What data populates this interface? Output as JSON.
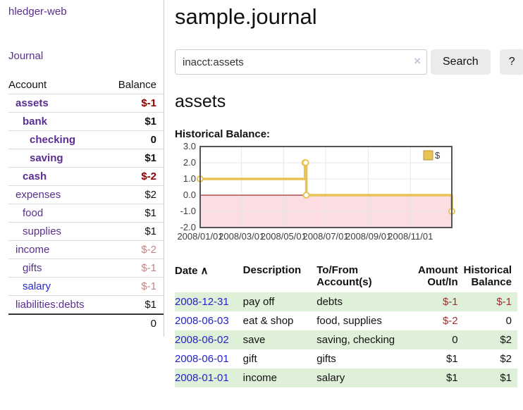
{
  "sidebar": {
    "app_title": "hledger-web",
    "nav": {
      "journal_label": "Journal"
    },
    "accounts_table": {
      "col_account": "Account",
      "col_balance": "Balance",
      "rows": [
        {
          "name": "assets",
          "indent": 1,
          "bold": true,
          "balance": "$-1",
          "balance_class": "neg-dark"
        },
        {
          "name": "bank",
          "indent": 2,
          "bold": true,
          "balance": "$1",
          "balance_class": ""
        },
        {
          "name": "checking",
          "indent": 3,
          "bold": true,
          "balance": "0",
          "balance_class": ""
        },
        {
          "name": "saving",
          "indent": 3,
          "bold": true,
          "balance": "$1",
          "balance_class": ""
        },
        {
          "name": "cash",
          "indent": 2,
          "bold": true,
          "balance": "$-2",
          "balance_class": "neg-dark"
        },
        {
          "name": "expenses",
          "indent": 1,
          "bold": false,
          "balance": "$2",
          "balance_class": ""
        },
        {
          "name": "food",
          "indent": 2,
          "bold": false,
          "balance": "$1",
          "balance_class": ""
        },
        {
          "name": "supplies",
          "indent": 2,
          "bold": false,
          "balance": "$1",
          "balance_class": ""
        },
        {
          "name": "income",
          "indent": 1,
          "bold": false,
          "balance": "$-2",
          "balance_class": "neg-light"
        },
        {
          "name": "gifts",
          "indent": 2,
          "bold": false,
          "balance": "$-1",
          "balance_class": "neg-light"
        },
        {
          "name": "salary",
          "indent": 2,
          "bold": false,
          "link_blue": true,
          "balance": "$-1",
          "balance_class": "neg-light"
        },
        {
          "name": "liabilities:debts",
          "indent": 1,
          "bold": false,
          "balance": "$1",
          "balance_class": ""
        }
      ],
      "total": "0"
    }
  },
  "header": {
    "title": "sample.journal"
  },
  "search": {
    "value": "inacct:assets",
    "clear_icon": "×",
    "button_label": "Search",
    "help_label": "?"
  },
  "account_page": {
    "title": "assets",
    "chart_label": "Historical Balance:"
  },
  "chart_data": {
    "type": "line",
    "step": true,
    "title": "Historical Balance",
    "series": [
      {
        "name": "$",
        "color": "#e8c254",
        "points": [
          [
            "2008-01-01",
            1
          ],
          [
            "2008-06-01",
            2
          ],
          [
            "2008-06-02",
            2
          ],
          [
            "2008-06-03",
            0
          ],
          [
            "2008-12-31",
            -1
          ]
        ]
      }
    ],
    "ylim": [
      -2,
      3
    ],
    "yticks": [
      3.0,
      2.0,
      1.0,
      0.0,
      -1.0,
      -2.0
    ],
    "xticks": [
      "2008/01/01",
      "2008/03/01",
      "2008/05/01",
      "2008/07/01",
      "2008/09/01",
      "2008/11/01"
    ],
    "xrange": [
      "2008-01-01",
      "2008-12-31"
    ],
    "grid": true,
    "negative_fill": "#fbdde2",
    "zero_line_color": "#8b0000",
    "border_color": "#555555",
    "legend_position": "top-right",
    "legend": [
      {
        "label": "$",
        "color": "#e8c254"
      }
    ]
  },
  "register_table": {
    "headers": {
      "date": "Date",
      "sort_indicator": "∧",
      "description": "Description",
      "accounts": "To/From Account(s)",
      "amount": "Amount Out/In",
      "balance": "Historical Balance"
    },
    "rows": [
      {
        "date": "2008-12-31",
        "description": "pay off",
        "accounts": "debts",
        "amount": "$-1",
        "amount_neg": true,
        "balance": "$-1",
        "balance_neg": true
      },
      {
        "date": "2008-06-03",
        "description": "eat & shop",
        "accounts": "food, supplies",
        "amount": "$-2",
        "amount_neg": true,
        "balance": "0",
        "balance_neg": false
      },
      {
        "date": "2008-06-02",
        "description": "save",
        "accounts": "saving, checking",
        "amount": "0",
        "amount_neg": false,
        "balance": "$2",
        "balance_neg": false
      },
      {
        "date": "2008-06-01",
        "description": "gift",
        "accounts": "gifts",
        "amount": "$1",
        "amount_neg": false,
        "balance": "$2",
        "balance_neg": false
      },
      {
        "date": "2008-01-01",
        "description": "income",
        "accounts": "salary",
        "amount": "$1",
        "amount_neg": false,
        "balance": "$1",
        "balance_neg": false
      }
    ]
  }
}
